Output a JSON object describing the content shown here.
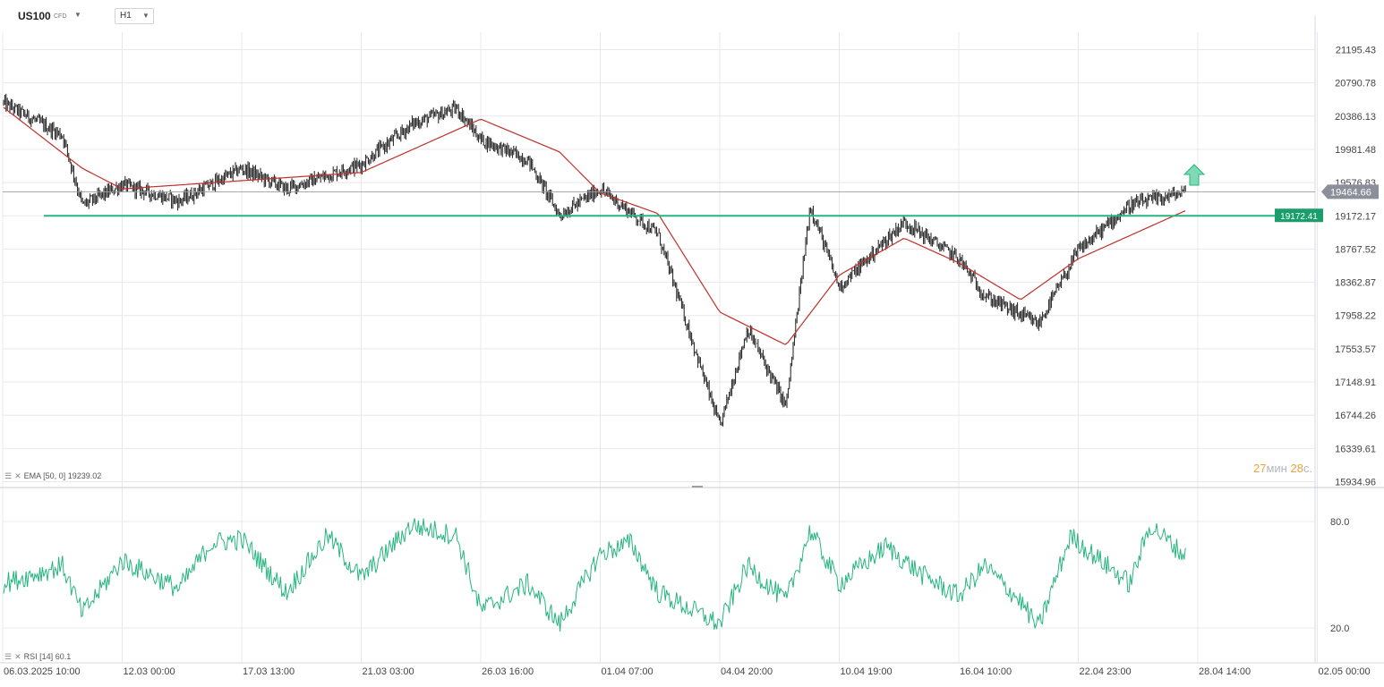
{
  "header": {
    "symbol": "US100",
    "symbol_sub": "CFD",
    "timeframe": "H1"
  },
  "indicators": {
    "ema_label": "EMA",
    "ema_params": "[50, 0]",
    "ema_value": "19239.02",
    "rsi_label": "RSI",
    "rsi_params": "[14]",
    "rsi_value": "60.1"
  },
  "countdown": {
    "minutes": "27",
    "minutes_unit": "мин",
    "seconds": "28",
    "seconds_unit": "с."
  },
  "colors": {
    "candles": "#1a1a1a",
    "ema": "#c0302a",
    "support": "#26b57f",
    "rsi": "#26b57f",
    "current_price_bg": "#8a8f99",
    "grid": "#e6e8eb",
    "arrow": "#26b57f"
  },
  "icons": {
    "symbol_dropdown": "chevron-down-icon",
    "timeframe_dropdown": "chevron-down-icon",
    "indicator_menu": "menu-icon",
    "indicator_remove": "close-icon",
    "signal": "up-arrow-icon"
  },
  "chart_data": [
    {
      "type": "candlestick",
      "instrument": "US100",
      "timeframe": "H1",
      "x_labels": [
        "06.03.2025 10:00",
        "12.03 00:00",
        "17.03 13:00",
        "21.03 03:00",
        "26.03 16:00",
        "01.04 07:00",
        "04.04 20:00",
        "10.04 19:00",
        "16.04 10:00",
        "22.04 23:00",
        "28.04 14:00",
        "02.05 00:00"
      ],
      "y_ticks": [
        "21195.43",
        "20790.78",
        "20386.13",
        "19981.48",
        "19576.83",
        "19172.17",
        "18767.52",
        "18362.87",
        "17958.22",
        "17553.57",
        "17148.91",
        "16744.26",
        "16339.61",
        "15934.96"
      ],
      "y_range": [
        15934.96,
        21195.43
      ],
      "current_price": "19464.66",
      "support_level": "19172.41",
      "approx_close_path": [
        {
          "x": "06.03.2025 10:00",
          "close": 20550
        },
        {
          "x": "08.03",
          "close": 20150
        },
        {
          "x": "10.03",
          "close": 19300
        },
        {
          "x": "12.03 00:00",
          "close": 19550
        },
        {
          "x": "14.03",
          "close": 19350
        },
        {
          "x": "17.03 13:00",
          "close": 19750
        },
        {
          "x": "19.03",
          "close": 19500
        },
        {
          "x": "21.03 03:00",
          "close": 19800
        },
        {
          "x": "24.03",
          "close": 20300
        },
        {
          "x": "25.03",
          "close": 20480
        },
        {
          "x": "26.03 16:00",
          "close": 20100
        },
        {
          "x": "28.03",
          "close": 19850
        },
        {
          "x": "31.03",
          "close": 19180
        },
        {
          "x": "01.04 07:00",
          "close": 19500
        },
        {
          "x": "03.04",
          "close": 18950
        },
        {
          "x": "04.04 20:00",
          "close": 16600
        },
        {
          "x": "06.04",
          "close": 17800
        },
        {
          "x": "08.04",
          "close": 16850
        },
        {
          "x": "09.04",
          "close": 19300
        },
        {
          "x": "10.04 19:00",
          "close": 18300
        },
        {
          "x": "13.04",
          "close": 19100
        },
        {
          "x": "16.04 10:00",
          "close": 18650
        },
        {
          "x": "18.04",
          "close": 18200
        },
        {
          "x": "21.04",
          "close": 17850
        },
        {
          "x": "22.04 23:00",
          "close": 18750
        },
        {
          "x": "24.04",
          "close": 19300
        },
        {
          "x": "26.04",
          "close": 19464.66
        }
      ],
      "ema": {
        "name": "EMA [50, 0]",
        "last": 19239.02,
        "approx_path": [
          {
            "x": "06.03.2025 10:00",
            "value": 20500
          },
          {
            "x": "10.03",
            "value": 19750
          },
          {
            "x": "12.03 00:00",
            "value": 19500
          },
          {
            "x": "17.03 13:00",
            "value": 19600
          },
          {
            "x": "21.03 03:00",
            "value": 19700
          },
          {
            "x": "26.03 16:00",
            "value": 20350
          },
          {
            "x": "30.03",
            "value": 19950
          },
          {
            "x": "01.04 07:00",
            "value": 19450
          },
          {
            "x": "03.04",
            "value": 19200
          },
          {
            "x": "04.04 20:00",
            "value": 18000
          },
          {
            "x": "08.04",
            "value": 17600
          },
          {
            "x": "10.04 19:00",
            "value": 18450
          },
          {
            "x": "13.04",
            "value": 18900
          },
          {
            "x": "16.04 10:00",
            "value": 18600
          },
          {
            "x": "20.04",
            "value": 18150
          },
          {
            "x": "22.04 23:00",
            "value": 18650
          },
          {
            "x": "26.04",
            "value": 19239.02
          }
        ]
      }
    },
    {
      "type": "line",
      "name": "RSI [14]",
      "y_ticks": [
        "80.0",
        "20.0"
      ],
      "last": 60.1,
      "approx_path": [
        {
          "x": "06.03.2025 10:00",
          "value": 45
        },
        {
          "x": "08.03",
          "value": 55
        },
        {
          "x": "10.03",
          "value": 28
        },
        {
          "x": "12.03 00:00",
          "value": 58
        },
        {
          "x": "14.03",
          "value": 42
        },
        {
          "x": "15.03",
          "value": 68
        },
        {
          "x": "17.03 13:00",
          "value": 70
        },
        {
          "x": "19.03",
          "value": 40
        },
        {
          "x": "20.03",
          "value": 72
        },
        {
          "x": "21.03 03:00",
          "value": 48
        },
        {
          "x": "23.03",
          "value": 78
        },
        {
          "x": "25.03",
          "value": 72
        },
        {
          "x": "26.03 16:00",
          "value": 30
        },
        {
          "x": "28.03",
          "value": 45
        },
        {
          "x": "30.03",
          "value": 22
        },
        {
          "x": "01.04 07:00",
          "value": 62
        },
        {
          "x": "02.04",
          "value": 68
        },
        {
          "x": "03.04",
          "value": 40
        },
        {
          "x": "04.04 20:00",
          "value": 22
        },
        {
          "x": "06.04",
          "value": 55
        },
        {
          "x": "08.04",
          "value": 35
        },
        {
          "x": "09.04",
          "value": 75
        },
        {
          "x": "10.04 19:00",
          "value": 45
        },
        {
          "x": "12.04",
          "value": 66
        },
        {
          "x": "14.04",
          "value": 50
        },
        {
          "x": "16.04 10:00",
          "value": 38
        },
        {
          "x": "18.04",
          "value": 55
        },
        {
          "x": "20.04",
          "value": 35
        },
        {
          "x": "21.04",
          "value": 20
        },
        {
          "x": "22.04",
          "value": 72
        },
        {
          "x": "22.04 23:00",
          "value": 68
        },
        {
          "x": "24.04",
          "value": 45
        },
        {
          "x": "25.04",
          "value": 78
        },
        {
          "x": "26.04",
          "value": 60.1
        }
      ]
    }
  ]
}
